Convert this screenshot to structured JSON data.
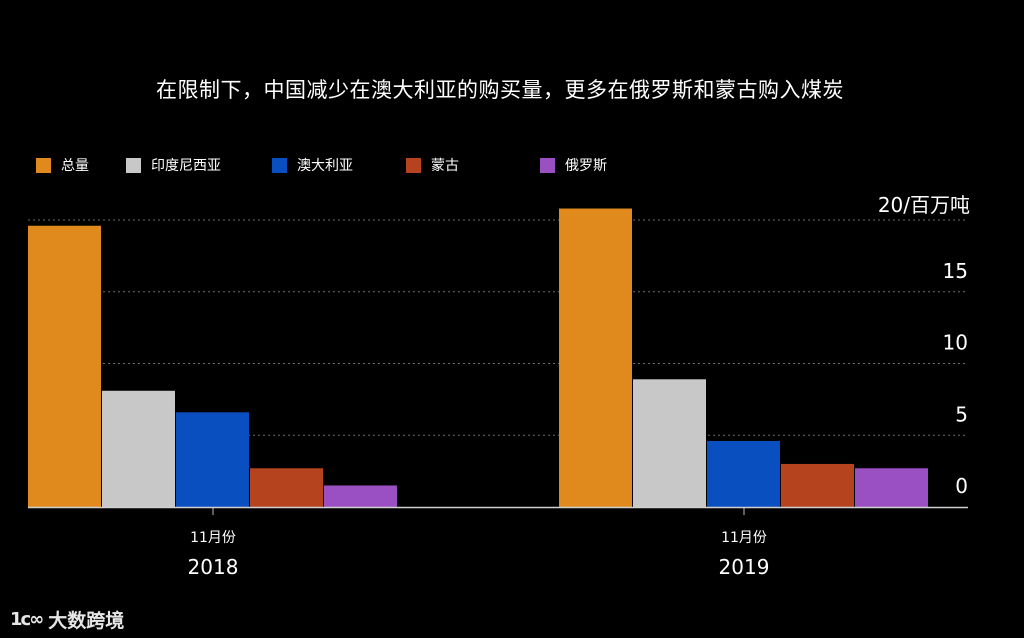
{
  "chart_data": {
    "type": "bar",
    "title": "在限制下，中国减少在澳大利亚的购买量，更多在俄罗斯和蒙古购入煤炭",
    "unit_label": "20/百万吨",
    "y_ticks": [
      "0",
      "5",
      "10",
      "15"
    ],
    "ylim": [
      0,
      20
    ],
    "grid": true,
    "legend_position": "top-left",
    "groups": [
      {
        "sublabel": "11月份",
        "label": "2018"
      },
      {
        "sublabel": "11月份",
        "label": "2019"
      }
    ],
    "series": [
      {
        "name": "总量",
        "color": "#E08A1E",
        "values": [
          19.6,
          20.8
        ]
      },
      {
        "name": "印度尼西亚",
        "color": "#C8C8C8",
        "values": [
          8.1,
          8.9
        ]
      },
      {
        "name": "澳大利亚",
        "color": "#0A4FC0",
        "values": [
          6.6,
          4.6
        ]
      },
      {
        "name": "蒙古",
        "color": "#B5441E",
        "values": [
          2.7,
          3.0
        ]
      },
      {
        "name": "俄罗斯",
        "color": "#9A4FC2",
        "values": [
          1.5,
          2.7
        ]
      }
    ]
  },
  "watermark": {
    "logo": "1ᴄ∞",
    "text": "大数跨境"
  }
}
